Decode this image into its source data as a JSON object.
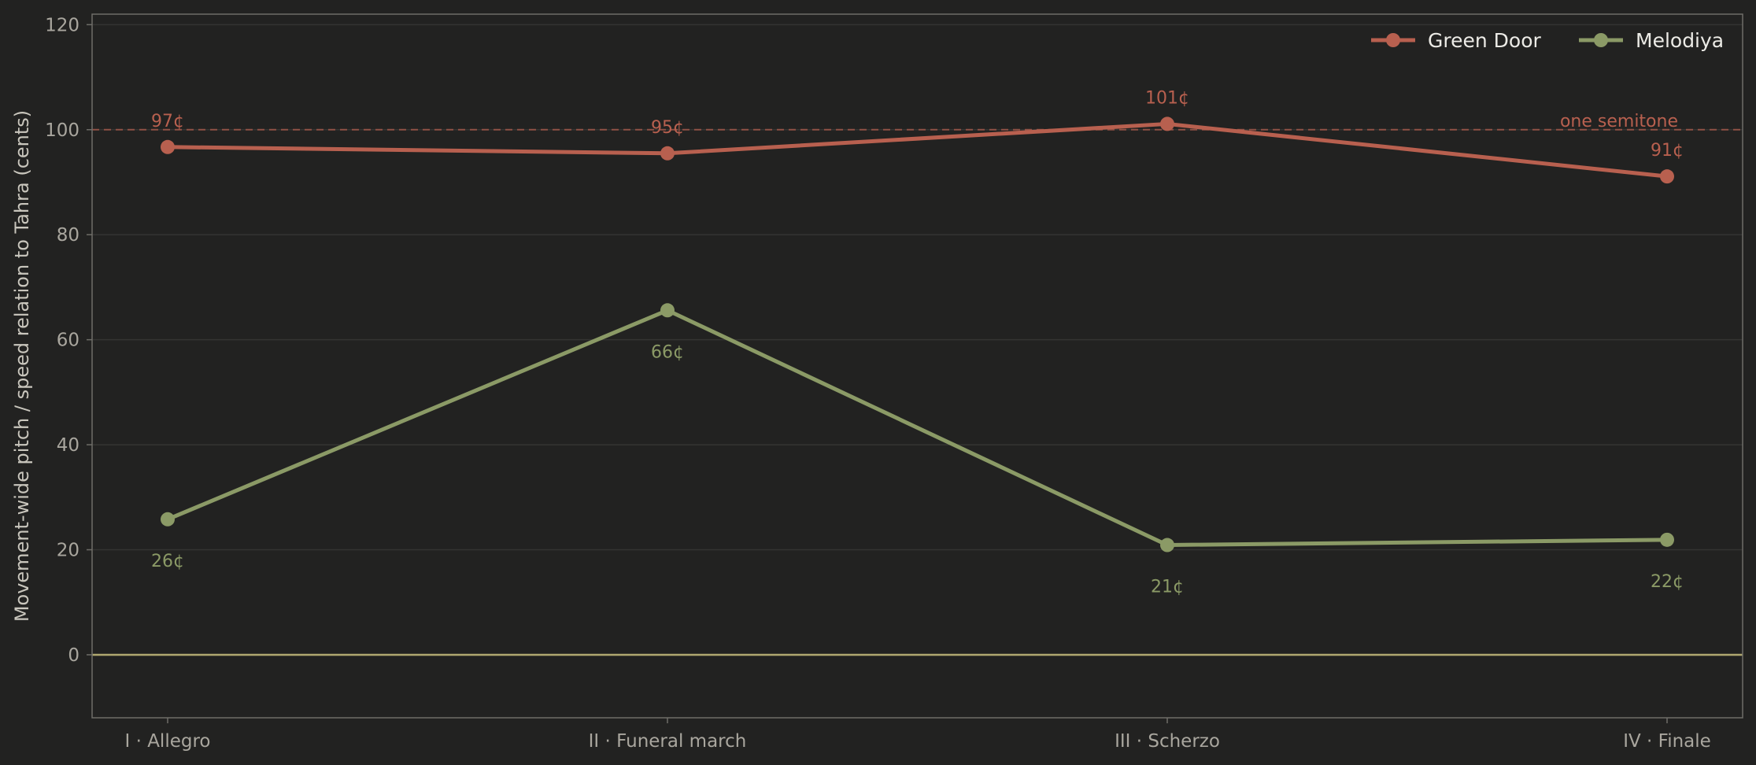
{
  "chart_data": {
    "type": "line",
    "categories": [
      "I · Allegro",
      "II · Funeral march",
      "III · Scherzo",
      "IV · Finale"
    ],
    "series": [
      {
        "name": "Green Door",
        "values": [
          96.7,
          95.5,
          101.1,
          91.1
        ],
        "labels": [
          "97¢",
          "95¢",
          "101¢",
          "91¢"
        ],
        "color": "#b8604f",
        "label_position": "above"
      },
      {
        "name": "Melodiya",
        "values": [
          25.8,
          65.6,
          20.9,
          21.9
        ],
        "labels": [
          "26¢",
          "66¢",
          "21¢",
          "22¢"
        ],
        "color": "#8b9a66",
        "label_position": "below"
      }
    ],
    "xlabel": "",
    "ylabel": "Movement-wide pitch / speed relation to Tahra (cents)",
    "ylim": [
      -12,
      122
    ],
    "yticks": [
      0,
      20,
      40,
      60,
      80,
      100,
      120
    ],
    "reference_lines": [
      {
        "y": 100,
        "label": "one semitone",
        "color": "#b8604f",
        "style": "dashed"
      },
      {
        "y": 0,
        "label": "",
        "color": "#b0a870",
        "style": "solid"
      }
    ],
    "grid": true,
    "legend_position": "top-right",
    "colors": {
      "background": "#222221",
      "grid": "#343432",
      "frame": "#6e6d68",
      "tick_text": "#a9a69e"
    }
  }
}
